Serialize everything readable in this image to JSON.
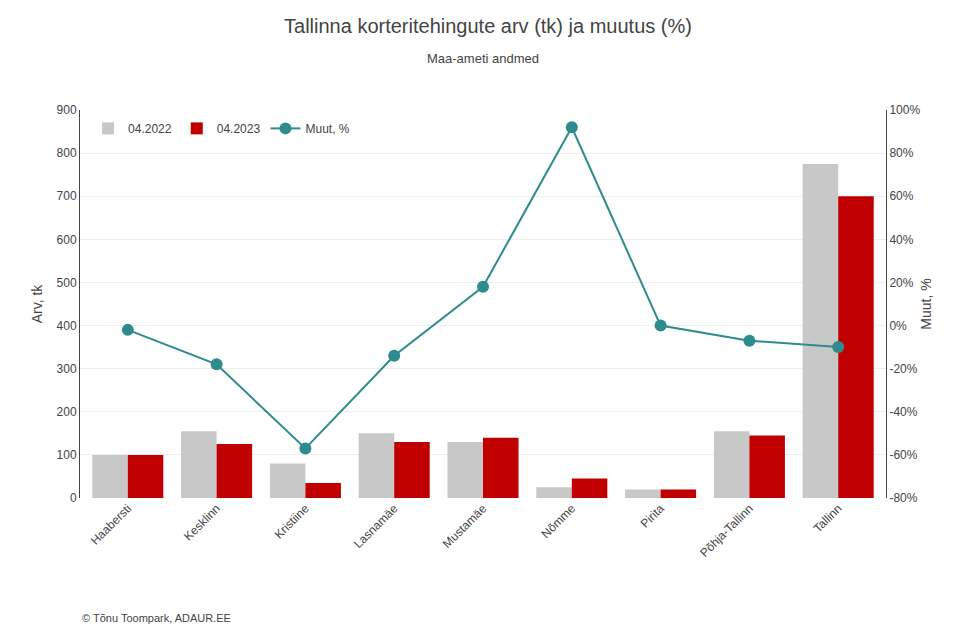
{
  "chart_data": {
    "type": "bar",
    "title": "Tallinna korteritehingute arv (tk) ja muutus (%)",
    "subtitle": "Maa-ameti andmed",
    "y_label": "Arv, tk",
    "y2_label": "Muut, %",
    "categories": [
      "Haabersti",
      "Kesklinn",
      "Kristiine",
      "Lasnamäe",
      "Mustamäe",
      "Nõmme",
      "Pirita",
      "Põhja-Tallinn",
      "Tallinn"
    ],
    "series": [
      {
        "name": "04.2022",
        "type": "bar",
        "color": "#c8c8c8",
        "values": [
          100,
          155,
          80,
          150,
          130,
          25,
          20,
          155,
          775
        ]
      },
      {
        "name": "04.2023",
        "type": "bar",
        "color": "#c00000",
        "values": [
          100,
          125,
          35,
          130,
          140,
          45,
          20,
          145,
          700
        ]
      },
      {
        "name": "Muut, %",
        "type": "line",
        "marker": "circle",
        "color": "#2e8b8e",
        "axis": "y2",
        "values": [
          -2,
          -18,
          -57,
          -14,
          18,
          92,
          0,
          -7,
          -10
        ]
      }
    ],
    "ylim": [
      0,
      900
    ],
    "yticks": [
      0,
      100,
      200,
      300,
      400,
      500,
      600,
      700,
      800,
      900
    ],
    "y2lim": [
      -80,
      100
    ],
    "y2ticks": [
      {
        "value": -80,
        "label": "-80%"
      },
      {
        "value": -60,
        "label": "-60%"
      },
      {
        "value": -40,
        "label": "-40%"
      },
      {
        "value": -20,
        "label": "-20%"
      },
      {
        "value": 0,
        "label": "0%"
      },
      {
        "value": 20,
        "label": "20%"
      },
      {
        "value": 40,
        "label": "40%"
      },
      {
        "value": 60,
        "label": "60%"
      },
      {
        "value": 80,
        "label": "80%"
      },
      {
        "value": 100,
        "label": "100%"
      }
    ],
    "grid": true,
    "legend": "upper left",
    "annotations": [
      "© Tõnu Toompark, ADAUR.EE"
    ]
  }
}
